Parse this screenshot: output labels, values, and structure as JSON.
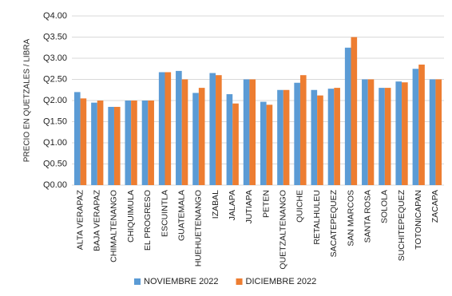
{
  "chart_data": {
    "type": "bar",
    "y_label": "PRECIO EN QUETZALES / LIBRA",
    "categories": [
      "ALTA VERAPAZ",
      "BAJA VERAPAZ",
      "CHIMALTENANGO",
      "CHIQUIMULA",
      "EL PROGRESO",
      "ESCUINTLA",
      "GUATEMALA",
      "HUEHUETENANGO",
      "IZABAL",
      "JALAPA",
      "JUTIAPA",
      "PETEN",
      "QUETZALTENANGO",
      "QUICHE",
      "RETALHULEU",
      "SACATEPEQUEZ",
      "SAN MARCOS",
      "SANTA ROSA",
      "SOLOLA",
      "SUCHITEPEQUEZ",
      "TOTONICAPAN",
      "ZACAPA"
    ],
    "series": [
      {
        "name": "NOVIEMBRE 2022",
        "color": "#5b9bd5",
        "values": [
          2.2,
          1.95,
          1.85,
          2.0,
          2.0,
          2.67,
          2.7,
          2.18,
          2.65,
          2.15,
          2.5,
          1.97,
          2.25,
          2.42,
          2.25,
          2.28,
          3.25,
          2.5,
          2.3,
          2.45,
          2.75,
          2.5
        ]
      },
      {
        "name": "DICIEMBRE 2022",
        "color": "#ed7d31",
        "values": [
          2.05,
          2.0,
          1.85,
          2.0,
          2.0,
          2.67,
          2.5,
          2.3,
          2.6,
          1.93,
          2.5,
          1.9,
          2.25,
          2.6,
          2.12,
          2.3,
          3.5,
          2.5,
          2.3,
          2.43,
          2.85,
          2.5
        ]
      }
    ],
    "ylim": [
      0,
      4
    ],
    "yticks": [
      {
        "value": 0,
        "label": "Q0.00"
      },
      {
        "value": 0.5,
        "label": "Q0.50"
      },
      {
        "value": 1,
        "label": "Q1.00"
      },
      {
        "value": 1.5,
        "label": "Q1.50"
      },
      {
        "value": 2,
        "label": "Q2.00"
      },
      {
        "value": 2.5,
        "label": "Q2.50"
      },
      {
        "value": 3,
        "label": "Q3.00"
      },
      {
        "value": 3.5,
        "label": "Q3.50"
      },
      {
        "value": 4,
        "label": "Q4.00"
      }
    ],
    "grid": true,
    "legend": "bottom"
  }
}
